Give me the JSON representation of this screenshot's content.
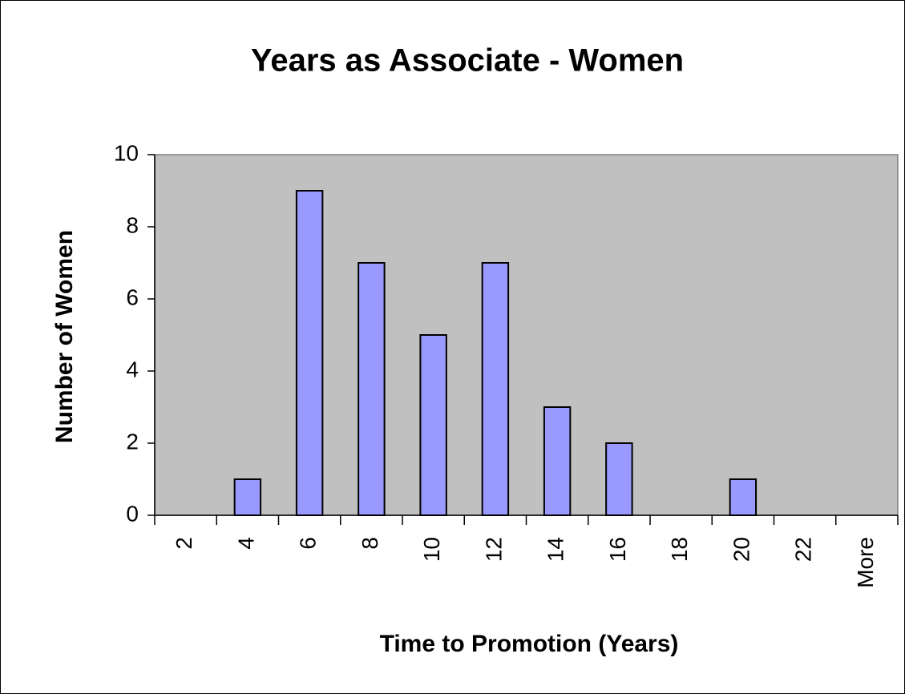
{
  "chart_data": {
    "type": "bar",
    "title": "Years as Associate - Women",
    "x_label": "Time to Promotion (Years)",
    "y_label": "Number of Women",
    "categories": [
      "2",
      "4",
      "6",
      "8",
      "10",
      "12",
      "14",
      "16",
      "18",
      "20",
      "22",
      "More"
    ],
    "values": [
      0,
      1,
      9,
      7,
      5,
      7,
      3,
      2,
      0,
      1,
      0,
      0
    ],
    "color": "#9999ff",
    "ylim": [
      0,
      10
    ],
    "yticks": [
      0,
      2,
      4,
      6,
      8,
      10
    ],
    "grid": false
  }
}
